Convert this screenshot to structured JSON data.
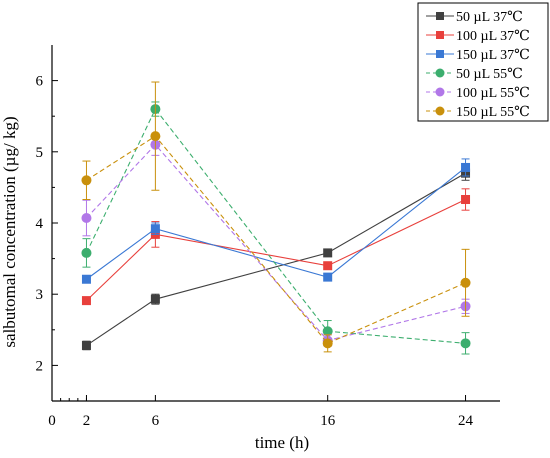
{
  "chart_data": {
    "type": "line",
    "xlabel": "time (h)",
    "ylabel": "salbutomal concentration (µg/ kg)",
    "x": [
      2,
      6,
      16,
      24
    ],
    "xlim": [
      0,
      26
    ],
    "ylim": [
      1.5,
      6.5
    ],
    "xticks": [
      "0",
      "2",
      "6",
      "16",
      "24"
    ],
    "yticks": [
      "2",
      "3",
      "4",
      "5",
      "6"
    ],
    "grid": false,
    "legend_position": "top-right",
    "series": [
      {
        "name": "50 µL  37℃",
        "color": "#404040",
        "marker": "square",
        "dashed": false,
        "values": [
          2.28,
          2.93,
          3.58,
          4.7
        ],
        "errors": [
          0.06,
          0.07,
          0.05,
          0.1
        ]
      },
      {
        "name": "100 µL  37℃",
        "color": "#e8403c",
        "marker": "square",
        "dashed": false,
        "values": [
          2.91,
          3.84,
          3.4,
          4.33
        ],
        "errors": [
          0.05,
          0.18,
          0.05,
          0.15
        ]
      },
      {
        "name": "150 µL  37℃",
        "color": "#3a78d4",
        "marker": "square",
        "dashed": false,
        "values": [
          3.21,
          3.92,
          3.24,
          4.78
        ],
        "errors": [
          0.05,
          0.08,
          0.05,
          0.12
        ]
      },
      {
        "name": "50 µL  55℃",
        "color": "#3cae6e",
        "marker": "circle",
        "dashed": true,
        "values": [
          3.58,
          5.6,
          2.48,
          2.31
        ],
        "errors": [
          0.2,
          0.1,
          0.15,
          0.15
        ]
      },
      {
        "name": "100 µL  55℃",
        "color": "#b177e8",
        "marker": "circle",
        "dashed": true,
        "values": [
          4.07,
          5.1,
          2.35,
          2.83
        ],
        "errors": [
          0.25,
          0.15,
          0.08,
          0.1
        ]
      },
      {
        "name": "150 µL  55℃",
        "color": "#c9900c",
        "marker": "circle",
        "dashed": true,
        "values": [
          4.6,
          5.22,
          2.31,
          3.16
        ],
        "errors": [
          0.27,
          0.76,
          0.12,
          0.47
        ]
      }
    ]
  }
}
